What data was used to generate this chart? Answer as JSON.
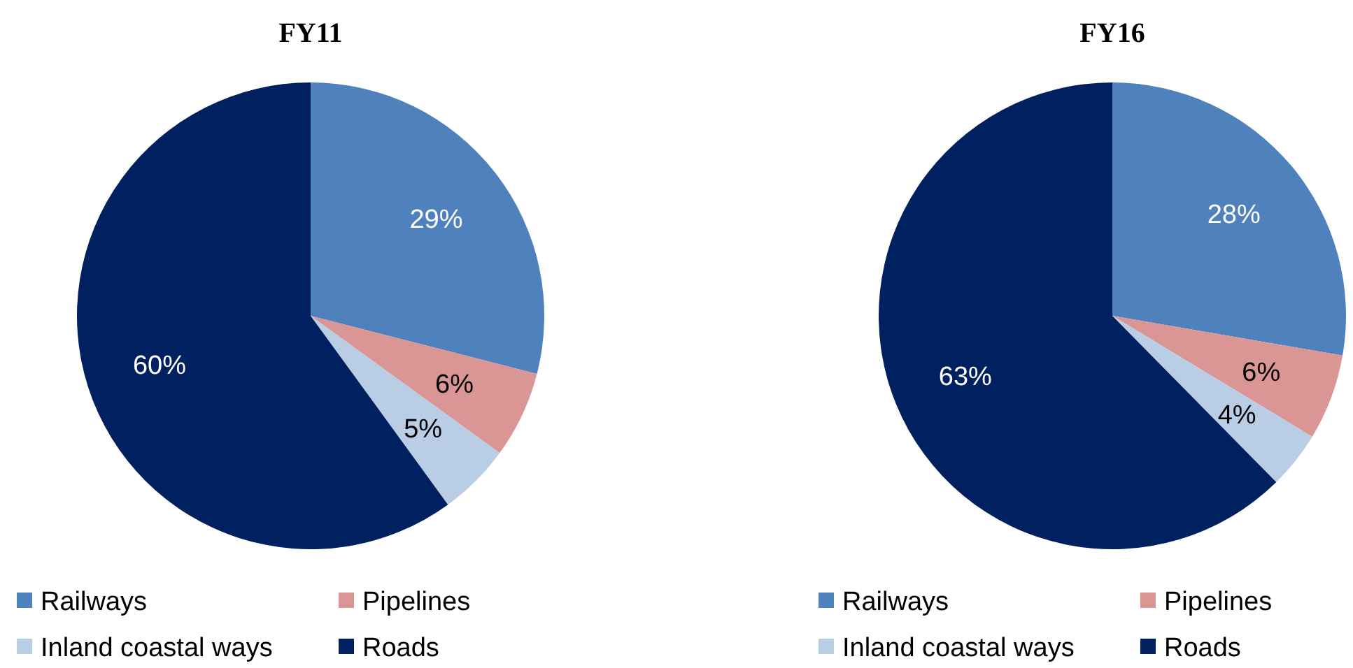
{
  "chart_data": [
    {
      "type": "pie",
      "title": "FY11",
      "categories": [
        "Railways",
        "Pipelines",
        "Inland coastal ways",
        "Roads"
      ],
      "values": [
        29,
        6,
        5,
        60
      ],
      "value_labels": [
        "29%",
        "6%",
        "5%",
        "60%"
      ],
      "colors": [
        "#4f81bd",
        "#d99694",
        "#b9cde5",
        "#002060"
      ],
      "legend": "bottom"
    },
    {
      "type": "pie",
      "title": "FY16",
      "categories": [
        "Railways",
        "Pipelines",
        "Inland coastal ways",
        "Roads"
      ],
      "values": [
        28,
        6,
        4,
        63
      ],
      "value_labels": [
        "28%",
        "6%",
        "4%",
        "63%"
      ],
      "colors": [
        "#4f81bd",
        "#d99694",
        "#b9cde5",
        "#002060"
      ],
      "legend": "bottom"
    }
  ]
}
